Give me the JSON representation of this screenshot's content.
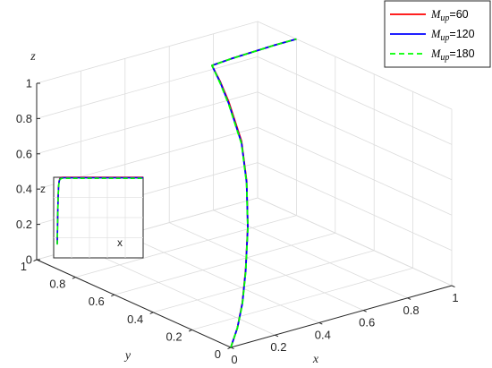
{
  "chart_data": {
    "type": "line",
    "projection": "3d",
    "xlabel": "x",
    "ylabel": "y",
    "zlabel": "z",
    "xlim": [
      0,
      1
    ],
    "ylim": [
      0,
      1
    ],
    "zlim": [
      0,
      1
    ],
    "x_ticks": [
      "0",
      "0.2",
      "0.4",
      "0.6",
      "0.8",
      "1"
    ],
    "y_ticks": [
      "0",
      "0.2",
      "0.4",
      "0.6",
      "0.8",
      "1"
    ],
    "z_ticks": [
      "0",
      "0.2",
      "0.4",
      "0.6",
      "0.8",
      "1"
    ],
    "grid": true,
    "legend_position": "top-right",
    "series": [
      {
        "name_symbol": "M",
        "name_subscript": "up",
        "name_suffix": "=60",
        "color": "#ff0000",
        "dash": "solid",
        "x": [
          0.0,
          0.03,
          0.07,
          0.12,
          0.2,
          0.3,
          0.4,
          0.5,
          0.55,
          0.6,
          0.7,
          0.8,
          0.9,
          1.0
        ],
        "y": [
          0.0,
          0.0,
          0.02,
          0.06,
          0.14,
          0.26,
          0.4,
          0.58,
          0.68,
          0.78,
          0.79,
          0.795,
          0.8,
          0.8
        ],
        "z": [
          0.0,
          0.1,
          0.22,
          0.37,
          0.55,
          0.71,
          0.83,
          0.93,
          0.975,
          1.0,
          1.0,
          1.0,
          1.0,
          1.0
        ]
      },
      {
        "name_symbol": "M",
        "name_subscript": "up",
        "name_suffix": "=120",
        "color": "#0000ff",
        "dash": "solid",
        "x": [
          0.0,
          0.03,
          0.07,
          0.12,
          0.2,
          0.3,
          0.4,
          0.5,
          0.55,
          0.6,
          0.7,
          0.8,
          0.9,
          1.0
        ],
        "y": [
          0.0,
          0.0,
          0.02,
          0.06,
          0.14,
          0.26,
          0.4,
          0.58,
          0.68,
          0.78,
          0.79,
          0.795,
          0.8,
          0.8
        ],
        "z": [
          0.0,
          0.1,
          0.215,
          0.36,
          0.54,
          0.7,
          0.82,
          0.92,
          0.97,
          1.0,
          1.0,
          1.0,
          1.0,
          1.0
        ]
      },
      {
        "name_symbol": "M",
        "name_subscript": "up",
        "name_suffix": "=180",
        "color": "#00ff00",
        "dash": "dashed",
        "x": [
          0.0,
          0.03,
          0.07,
          0.12,
          0.2,
          0.3,
          0.4,
          0.5,
          0.55,
          0.6,
          0.7,
          0.8,
          0.9,
          1.0
        ],
        "y": [
          0.0,
          0.0,
          0.02,
          0.06,
          0.14,
          0.26,
          0.4,
          0.58,
          0.68,
          0.78,
          0.79,
          0.795,
          0.8,
          0.8
        ],
        "z": [
          0.0,
          0.1,
          0.21,
          0.355,
          0.535,
          0.695,
          0.815,
          0.915,
          0.965,
          1.0,
          1.0,
          1.0,
          1.0,
          1.0
        ]
      }
    ],
    "inset": {
      "xlabel": "x",
      "zlabel": "z",
      "x": [
        0.0,
        0.005,
        0.01,
        0.015,
        0.02,
        0.03,
        0.05,
        0.1,
        0.3,
        0.6,
        1.0
      ],
      "z": [
        0.0,
        0.4,
        0.7,
        0.85,
        0.93,
        0.98,
        1.0,
        1.0,
        1.0,
        1.0,
        1.0
      ]
    }
  }
}
